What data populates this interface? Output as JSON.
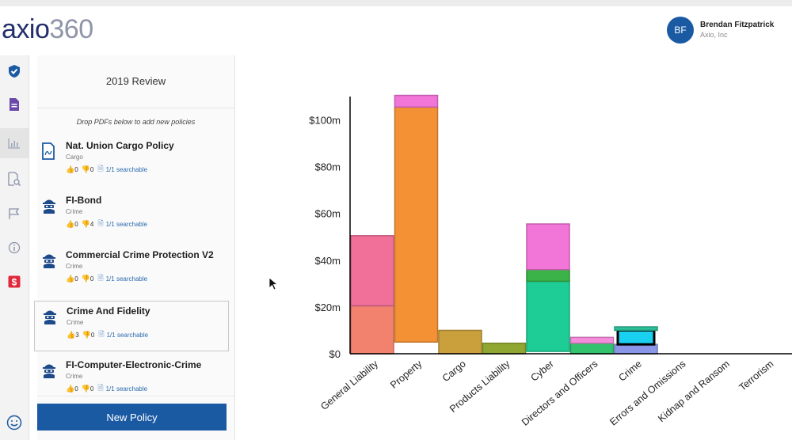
{
  "app": {
    "logo_main": "axio",
    "logo_num": "360"
  },
  "user": {
    "initials": "BF",
    "name": "Brendan Fitzpatrick",
    "org": "Axio, Inc"
  },
  "rail_icons": [
    "shield-check-icon",
    "document-icon",
    "bar-chart-icon",
    "search-document-icon",
    "flag-icon",
    "info-icon",
    "dollar-icon",
    "smiley-icon"
  ],
  "panel": {
    "title": "2019 Review",
    "drop_hint": "Drop PDFs below to add new policies",
    "new_policy_label": "New Policy"
  },
  "policies": [
    {
      "name": "Nat. Union Cargo Policy",
      "category": "Cargo",
      "up": "0",
      "down": "0",
      "searchable": "1/1 searchable",
      "icon": "pdf-document-icon"
    },
    {
      "name": "FI-Bond",
      "category": "Crime",
      "up": "0",
      "down": "4",
      "searchable": "1/1 searchable",
      "icon": "masked-thief-icon"
    },
    {
      "name": "Commercial Crime Protection V2",
      "category": "Crime",
      "up": "0",
      "down": "0",
      "searchable": "1/1 searchable",
      "icon": "masked-thief-icon"
    },
    {
      "name": "Crime And Fidelity",
      "category": "Crime",
      "up": "3",
      "down": "0",
      "searchable": "1/1 searchable",
      "icon": "masked-thief-icon"
    },
    {
      "name": "FI-Computer-Electronic-Crime",
      "category": "Crime",
      "up": "0",
      "down": "0",
      "searchable": "1/1 searchable",
      "icon": "masked-thief-icon"
    }
  ],
  "chart_data": {
    "type": "bar",
    "stacked": true,
    "categories": [
      "General Liability",
      "Property",
      "Cargo",
      "Products Liability",
      "Cyber",
      "Directors and Officers",
      "Crime",
      "Errors and Omissions",
      "Kidnap and Ransom",
      "Terrorism"
    ],
    "ytick_labels": [
      "$0",
      "$20m",
      "$40m",
      "$60m",
      "$80m",
      "$100m"
    ],
    "ylim": [
      0,
      110
    ],
    "y_ticks": [
      0,
      20,
      40,
      60,
      80,
      100
    ],
    "grid": false,
    "segments": [
      {
        "category": "General Liability",
        "from": 0,
        "to": 20.5,
        "color": "#f2826e"
      },
      {
        "category": "General Liability",
        "from": 20.5,
        "to": 50.5,
        "color": "#f0709a"
      },
      {
        "category": "Property",
        "from": 5,
        "to": 105.5,
        "color": "#f39134"
      },
      {
        "category": "Property",
        "from": 105.5,
        "to": 110.5,
        "color": "#f275d8"
      },
      {
        "category": "Cargo",
        "from": 0,
        "to": 10,
        "color": "#c9a03b"
      },
      {
        "category": "Products Liability",
        "from": 0,
        "to": 4.5,
        "color": "#8fa630"
      },
      {
        "category": "Cyber",
        "from": 1,
        "to": 31,
        "color": "#1ecc96"
      },
      {
        "category": "Cyber",
        "from": 31,
        "to": 36,
        "color": "#3bb348"
      },
      {
        "category": "Cyber",
        "from": 36,
        "to": 55.5,
        "color": "#f275d8"
      },
      {
        "category": "Directors and Officers",
        "from": 0,
        "to": 4.5,
        "color": "#33c26e"
      },
      {
        "category": "Directors and Officers",
        "from": 4.5,
        "to": 7,
        "color": "#f58cdc"
      },
      {
        "category": "Crime",
        "from": 0,
        "to": 4,
        "color": "#8a96e8"
      },
      {
        "category": "Crime",
        "from": 4,
        "to": 10,
        "color": "#1ad0f0",
        "highlight": true
      },
      {
        "category": "Crime",
        "from": 10,
        "to": 11.5,
        "color": "#2bbf9a"
      }
    ]
  }
}
